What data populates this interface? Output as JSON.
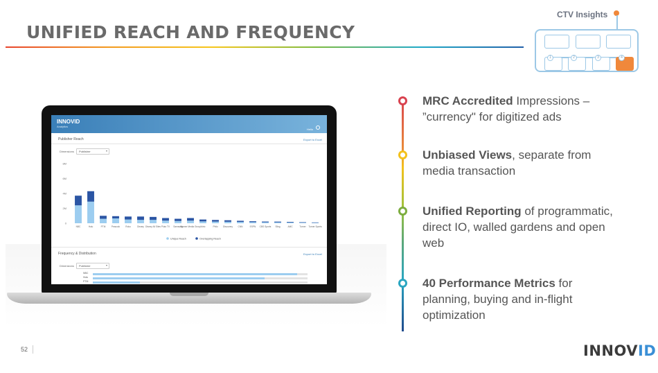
{
  "slide": {
    "title": "UNIFIED REACH AND FREQUENCY",
    "page_number": "52"
  },
  "ctv_diagram": {
    "label": "CTV Insights",
    "steps": [
      "1",
      "2",
      "3",
      "4"
    ],
    "active_step": "4"
  },
  "laptop_app": {
    "logo": "INNOVID",
    "subtitle": "Analytics",
    "user": "Hello",
    "reach_panel": {
      "title": "Publisher Reach",
      "export": "Export to Excel",
      "dimension_label": "Dimensions",
      "dimension_value": "Publisher"
    },
    "freq_panel": {
      "title": "Frequency & Distribution",
      "export": "Export to Excel",
      "dimension_label": "Dimensions",
      "dimension_value": "Publisher",
      "rows": [
        {
          "label": "NBC",
          "value": 0.95
        },
        {
          "label": "Hulu",
          "value": 0.8
        },
        {
          "label": "PTM",
          "value": 0.22
        }
      ]
    }
  },
  "chart_data": {
    "type": "bar",
    "title": "",
    "xlabel": "",
    "ylabel": "",
    "ylim": [
      0,
      8
    ],
    "y_ticks": [
      "0",
      "2M",
      "4M",
      "6M",
      "8M"
    ],
    "categories": [
      "NBC",
      "Hulu",
      "PTM",
      "Peacock",
      "Roku",
      "Disney",
      "Disney All Sites",
      "Pluto TV",
      "Samsung",
      "Warner Media Group",
      "Vizio",
      "Philo",
      "Discovery",
      "CNN",
      "ESPN",
      "CBS Sports",
      "Sling",
      "AMC",
      "Turner",
      "Turner Sports"
    ],
    "series": [
      {
        "name": "Unique Reach",
        "color": "#9ccdf0",
        "values": [
          2.4,
          2.9,
          0.6,
          0.65,
          0.5,
          0.45,
          0.45,
          0.35,
          0.3,
          0.35,
          0.25,
          0.22,
          0.2,
          0.18,
          0.15,
          0.13,
          0.12,
          0.1,
          0.08,
          0.06
        ]
      },
      {
        "name": "Overlapping Reach",
        "color": "#2b55a4",
        "values": [
          1.3,
          1.4,
          0.4,
          0.3,
          0.4,
          0.45,
          0.4,
          0.35,
          0.3,
          0.35,
          0.25,
          0.22,
          0.2,
          0.15,
          0.12,
          0.1,
          0.1,
          0.08,
          0.06,
          0.05
        ]
      }
    ],
    "legend": "bottom"
  },
  "points": [
    {
      "bold": "MRC Accredited",
      "rest": " Impressions – ”currency\" for digitized ads",
      "color": "#d9424f"
    },
    {
      "bold": "Unbiased Views",
      "rest": ", separate from media transaction",
      "color": "#f3c11c"
    },
    {
      "bold": "Unified Reporting",
      "rest": " of programmatic, direct IO, walled gardens and open web",
      "color": "#7dad3f"
    },
    {
      "bold": "40 Performance Metrics",
      "rest": " for planning, buying and in-flight optimization",
      "color": "#2aa6c1"
    }
  ],
  "brand": {
    "logo_main": "INNOV",
    "logo_accent": "ID"
  }
}
